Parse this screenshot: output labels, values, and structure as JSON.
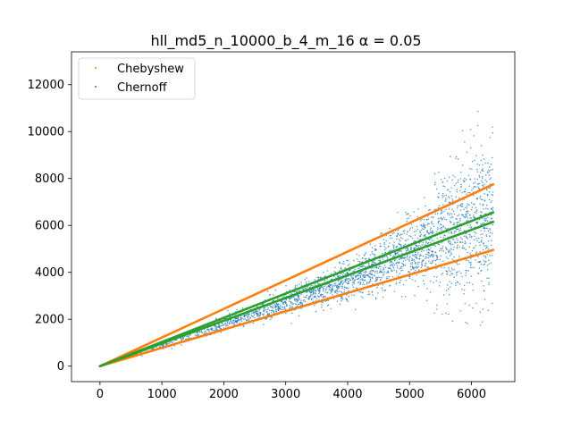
{
  "chart_data": {
    "type": "scatter",
    "title": "hll_md5_n_10000_b_4_m_16 α = 0.05",
    "xlabel": "",
    "ylabel": "",
    "xlim": [
      -460,
      6700
    ],
    "ylim": [
      -660,
      13400
    ],
    "x_ticks": [
      0,
      1000,
      2000,
      3000,
      4000,
      5000,
      6000
    ],
    "y_ticks": [
      0,
      2000,
      4000,
      6000,
      8000,
      10000,
      12000
    ],
    "grid": false,
    "legend_position": "top-left",
    "legend": [
      {
        "name": "Chebyshew",
        "color": "#ff7f0e"
      },
      {
        "name": "Chernoff",
        "color": "#1f77b4"
      }
    ],
    "scatter_series": {
      "color": "#1f77b4",
      "x_range": [
        0,
        6350
      ],
      "approx_mean_y": [
        [
          0,
          0
        ],
        [
          1000,
          900
        ],
        [
          2000,
          1800
        ],
        [
          3000,
          2700
        ],
        [
          4000,
          3600
        ],
        [
          5000,
          4900
        ],
        [
          6000,
          6000
        ],
        [
          6350,
          6400
        ]
      ]
    },
    "bound_lines": [
      {
        "name": "Chebyshew upper",
        "color": "#ff7f0e",
        "x": [
          0,
          6350
        ],
        "y": [
          0,
          7750
        ]
      },
      {
        "name": "Chebyshew lower",
        "color": "#ff7f0e",
        "x": [
          0,
          6350
        ],
        "y": [
          0,
          4950
        ]
      },
      {
        "name": "Chernoff upper",
        "color": "#2ca02c",
        "x": [
          0,
          6350
        ],
        "y": [
          0,
          6550
        ]
      },
      {
        "name": "Chernoff lower",
        "color": "#2ca02c",
        "x": [
          0,
          6350
        ],
        "y": [
          0,
          6150
        ]
      }
    ]
  }
}
